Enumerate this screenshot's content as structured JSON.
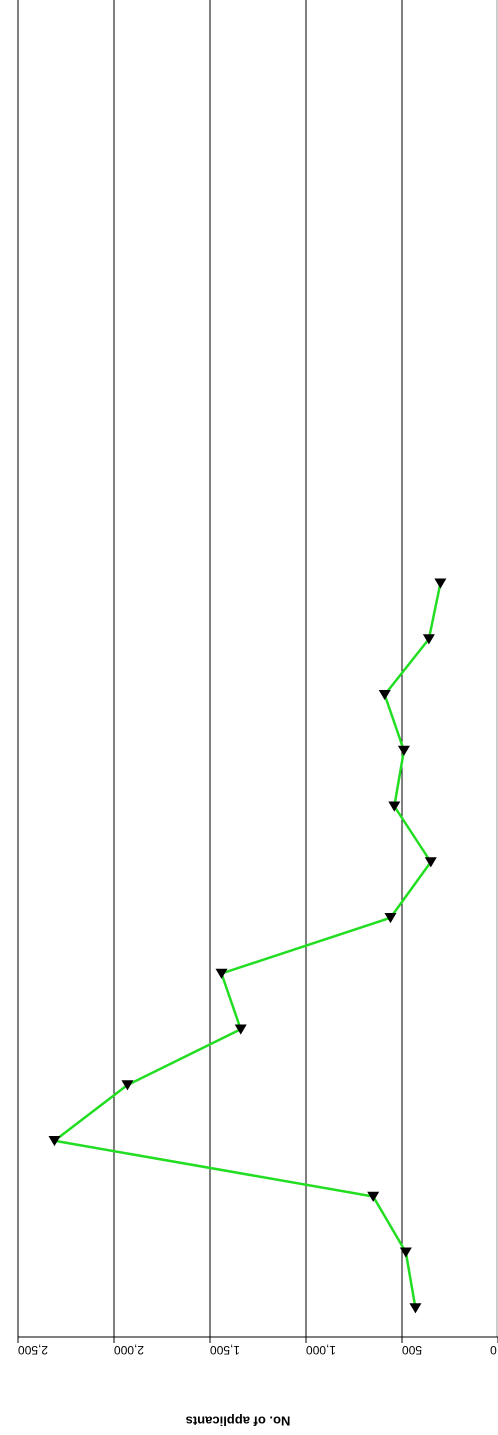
{
  "chart_data": {
    "type": "line",
    "orientation": "rotated-180",
    "ylabel": "No. of applicants",
    "ylim": [
      0,
      2500
    ],
    "yticks": [
      0,
      500,
      1000,
      1500,
      2000,
      2500
    ],
    "ytick_labels": [
      "0",
      "500",
      "1,000",
      "1,500",
      "2,000",
      "2,500"
    ],
    "grid": true,
    "series": [
      {
        "color": "#22dd22",
        "marker": "triangle",
        "marker_color": "#000000",
        "values": [
          430,
          480,
          650,
          2310,
          1930,
          1340,
          1440,
          560,
          350,
          540,
          490,
          590,
          360,
          300
        ]
      }
    ]
  }
}
